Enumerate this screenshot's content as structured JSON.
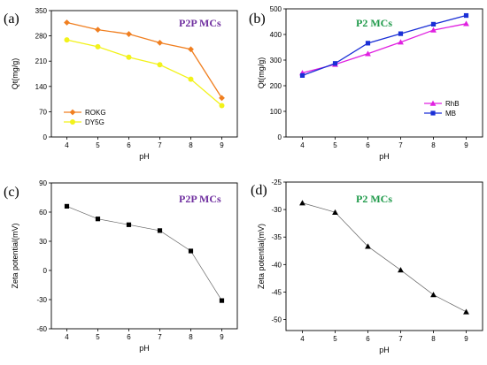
{
  "chart_data": [
    {
      "id": "a",
      "type": "line",
      "panel_label": "(a)",
      "title": "P2P MCs",
      "title_color": "#7030a0",
      "xlabel": "pH",
      "ylabel": "Qt(mg/g)",
      "x": [
        4,
        5,
        6,
        7,
        8,
        9
      ],
      "xlim": [
        3.5,
        9.5
      ],
      "xticks": [
        4,
        5,
        6,
        7,
        8,
        9
      ],
      "ylim": [
        0,
        350
      ],
      "yticks": [
        0,
        70,
        140,
        210,
        280,
        350
      ],
      "grid": false,
      "legend_position": "bottom-left",
      "series": [
        {
          "name": "ROKG",
          "color": "#f07f20",
          "marker": "diamond",
          "values": [
            317,
            297,
            285,
            261,
            243,
            108
          ]
        },
        {
          "name": "DY5G",
          "color": "#f2f21a",
          "marker": "circle",
          "values": [
            269,
            250,
            221,
            200,
            160,
            87
          ]
        }
      ]
    },
    {
      "id": "b",
      "type": "line",
      "panel_label": "(b)",
      "title": "P2 MCs",
      "title_color": "#1f9a4a",
      "xlabel": "pH",
      "ylabel": "Qt(mg/g)",
      "x": [
        4,
        5,
        6,
        7,
        8,
        9
      ],
      "xlim": [
        3.5,
        9.5
      ],
      "xticks": [
        4,
        5,
        6,
        7,
        8,
        9
      ],
      "ylim": [
        0,
        500
      ],
      "yticks": [
        0,
        100,
        200,
        300,
        400,
        500
      ],
      "grid": false,
      "legend_position": "bottom-right",
      "series": [
        {
          "name": "RhB",
          "color": "#e020e0",
          "marker": "triangle",
          "values": [
            250,
            283,
            325,
            370,
            417,
            442
          ]
        },
        {
          "name": "MB",
          "color": "#1a2fd6",
          "marker": "square",
          "values": [
            240,
            287,
            366,
            403,
            440,
            474
          ]
        }
      ]
    },
    {
      "id": "c",
      "type": "line",
      "panel_label": "(c)",
      "title": "P2P MCs",
      "title_color": "#7030a0",
      "xlabel": "pH",
      "ylabel": "Zeta potential(mV)",
      "x": [
        4,
        5,
        6,
        7,
        8,
        9
      ],
      "xlim": [
        3.5,
        9.5
      ],
      "xticks": [
        4,
        5,
        6,
        7,
        8,
        9
      ],
      "ylim": [
        -60,
        90
      ],
      "yticks": [
        -60,
        -30,
        0,
        30,
        60,
        90
      ],
      "grid": false,
      "series": [
        {
          "name": "",
          "color": "#000000",
          "marker": "square",
          "values": [
            66,
            53,
            47,
            41,
            20,
            -31
          ]
        }
      ]
    },
    {
      "id": "d",
      "type": "line",
      "panel_label": "(d)",
      "title": "P2 MCs",
      "title_color": "#1f9a4a",
      "xlabel": "pH",
      "ylabel": "Zeta potential(mV)",
      "x": [
        4,
        5,
        6,
        7,
        8,
        9
      ],
      "xlim": [
        3.5,
        9.5
      ],
      "xticks": [
        4,
        5,
        6,
        7,
        8,
        9
      ],
      "ylim": [
        -52,
        -25
      ],
      "yticks": [
        -50,
        -45,
        -40,
        -35,
        -30,
        -25
      ],
      "grid": false,
      "series": [
        {
          "name": "",
          "color": "#000000",
          "marker": "triangle",
          "values": [
            -28.8,
            -30.5,
            -36.7,
            -41,
            -45.5,
            -48.6
          ]
        }
      ]
    }
  ]
}
